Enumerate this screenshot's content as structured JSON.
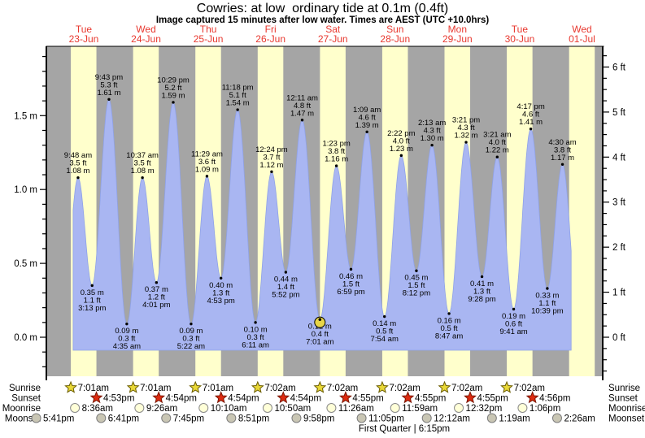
{
  "title": "Cowries: at low  ordinary tide at 0.1m (0.4ft)",
  "subtitle": "Image captured 15 minutes after low water. Times are AEST (UTC +10.0hrs)",
  "colors": {
    "background": "#ffffff",
    "night_band": "#a5a5a5",
    "day_band": "#ffffcc",
    "tide_fill": "#a9b6f2",
    "tide_stroke": "#8fa2e8",
    "axis": "#000000",
    "day_label": "#e8382f",
    "annotation_text": "#000000",
    "sunrise_star": "#e9d837",
    "sunrise_star_outline": "#6b5d00",
    "sunset_star": "#dd2b10",
    "sunset_star_outline": "#7a1500",
    "moonrise_circle": "#ffffd8",
    "moonrise_circle_outline": "#8a8a8a",
    "moonset_circle": "#c9c6b4",
    "moonset_circle_outline": "#7d7d7d",
    "capture_marker": "#e8d548"
  },
  "chart_data": {
    "type": "area",
    "title": "Cowries: at low  ordinary tide at 0.1m (0.4ft)",
    "subtitle": "Image captured 15 minutes after low water. Times are AEST (UTC +10.0hrs)",
    "days": [
      {
        "weekday": "Tue",
        "date": "23-Jun"
      },
      {
        "weekday": "Wed",
        "date": "24-Jun"
      },
      {
        "weekday": "Thu",
        "date": "25-Jun"
      },
      {
        "weekday": "Fri",
        "date": "26-Jun"
      },
      {
        "weekday": "Sat",
        "date": "27-Jun"
      },
      {
        "weekday": "Sun",
        "date": "28-Jun"
      },
      {
        "weekday": "Mon",
        "date": "29-Jun"
      },
      {
        "weekday": "Tue",
        "date": "30-Jun"
      },
      {
        "weekday": "Wed",
        "date": "01-Jul"
      }
    ],
    "y_axis_left": {
      "unit": "m",
      "ticks": [
        {
          "value": 0.0,
          "label": "0.0 m"
        },
        {
          "value": 0.5,
          "label": "0.5 m"
        },
        {
          "value": 1.0,
          "label": "1.0 m"
        },
        {
          "value": 1.5,
          "label": "1.5 m"
        }
      ]
    },
    "y_axis_right": {
      "unit": "ft",
      "ticks": [
        {
          "value": 0,
          "label": "0 ft"
        },
        {
          "value": 1,
          "label": "1 ft"
        },
        {
          "value": 2,
          "label": "2 ft"
        },
        {
          "value": 3,
          "label": "3 ft"
        },
        {
          "value": 4,
          "label": "4 ft"
        },
        {
          "value": 5,
          "label": "5 ft"
        },
        {
          "value": 6,
          "label": "6 ft"
        }
      ]
    },
    "tides": [
      {
        "day": 0,
        "time": "9:48 am",
        "type": "high",
        "ft_label": "3.5 ft",
        "m_label": "1.08 m",
        "height_m": 1.08
      },
      {
        "day": 0,
        "time": "3:13 pm",
        "type": "low",
        "ft_label": "1.1 ft",
        "m_label": "0.35 m",
        "height_m": 0.35
      },
      {
        "day": 0,
        "time": "9:43 pm",
        "type": "high",
        "ft_label": "5.3 ft",
        "m_label": "1.61 m",
        "height_m": 1.61
      },
      {
        "day": 1,
        "time": "4:35 am",
        "type": "low",
        "ft_label": "0.3 ft",
        "m_label": "0.09 m",
        "height_m": 0.09
      },
      {
        "day": 1,
        "time": "10:37 am",
        "type": "high",
        "ft_label": "3.5 ft",
        "m_label": "1.08 m",
        "height_m": 1.08
      },
      {
        "day": 1,
        "time": "4:01 pm",
        "type": "low",
        "ft_label": "1.2 ft",
        "m_label": "0.37 m",
        "height_m": 0.37
      },
      {
        "day": 1,
        "time": "10:29 pm",
        "type": "high",
        "ft_label": "5.2 ft",
        "m_label": "1.59 m",
        "height_m": 1.59
      },
      {
        "day": 2,
        "time": "5:22 am",
        "type": "low",
        "ft_label": "0.3 ft",
        "m_label": "0.09 m",
        "height_m": 0.09
      },
      {
        "day": 2,
        "time": "11:29 am",
        "type": "high",
        "ft_label": "3.6 ft",
        "m_label": "1.09 m",
        "height_m": 1.09
      },
      {
        "day": 2,
        "time": "4:53 pm",
        "type": "low",
        "ft_label": "1.3 ft",
        "m_label": "0.40 m",
        "height_m": 0.4
      },
      {
        "day": 2,
        "time": "11:18 pm",
        "type": "high",
        "ft_label": "5.1 ft",
        "m_label": "1.54 m",
        "height_m": 1.54
      },
      {
        "day": 3,
        "time": "6:11 am",
        "type": "low",
        "ft_label": "0.3 ft",
        "m_label": "0.10 m",
        "height_m": 0.1
      },
      {
        "day": 3,
        "time": "12:24 pm",
        "type": "high",
        "ft_label": "3.7 ft",
        "m_label": "1.12 m",
        "height_m": 1.12
      },
      {
        "day": 3,
        "time": "5:52 pm",
        "type": "low",
        "ft_label": "1.4 ft",
        "m_label": "0.44 m",
        "height_m": 0.44
      },
      {
        "day": 4,
        "time": "12:11 am",
        "type": "high",
        "ft_label": "4.8 ft",
        "m_label": "1.47 m",
        "height_m": 1.47
      },
      {
        "day": 4,
        "time": "7:01 am",
        "type": "low",
        "ft_label": "0.4 ft",
        "m_label": "0.12 m",
        "height_m": 0.12,
        "capture_marker": true
      },
      {
        "day": 4,
        "time": "1:23 pm",
        "type": "high",
        "ft_label": "3.8 ft",
        "m_label": "1.16 m",
        "height_m": 1.16
      },
      {
        "day": 4,
        "time": "6:59 pm",
        "type": "low",
        "ft_label": "1.5 ft",
        "m_label": "0.46 m",
        "height_m": 0.46
      },
      {
        "day": 5,
        "time": "1:09 am",
        "type": "high",
        "ft_label": "4.6 ft",
        "m_label": "1.39 m",
        "height_m": 1.39
      },
      {
        "day": 5,
        "time": "7:54 am",
        "type": "low",
        "ft_label": "0.5 ft",
        "m_label": "0.14 m",
        "height_m": 0.14
      },
      {
        "day": 5,
        "time": "2:22 pm",
        "type": "high",
        "ft_label": "4.0 ft",
        "m_label": "1.23 m",
        "height_m": 1.23
      },
      {
        "day": 5,
        "time": "8:12 pm",
        "type": "low",
        "ft_label": "1.5 ft",
        "m_label": "0.45 m",
        "height_m": 0.45
      },
      {
        "day": 6,
        "time": "2:13 am",
        "type": "high",
        "ft_label": "4.3 ft",
        "m_label": "1.30 m",
        "height_m": 1.3
      },
      {
        "day": 6,
        "time": "8:47 am",
        "type": "low",
        "ft_label": "0.5 ft",
        "m_label": "0.16 m",
        "height_m": 0.16
      },
      {
        "day": 6,
        "time": "3:21 pm",
        "type": "high",
        "ft_label": "4.3 ft",
        "m_label": "1.32 m",
        "height_m": 1.32
      },
      {
        "day": 6,
        "time": "9:28 pm",
        "type": "low",
        "ft_label": "1.3 ft",
        "m_label": "0.41 m",
        "height_m": 0.41
      },
      {
        "day": 7,
        "time": "3:21 am",
        "type": "high",
        "ft_label": "4.0 ft",
        "m_label": "1.22 m",
        "height_m": 1.22
      },
      {
        "day": 7,
        "time": "9:41 am",
        "type": "low",
        "ft_label": "0.6 ft",
        "m_label": "0.19 m",
        "height_m": 0.19
      },
      {
        "day": 7,
        "time": "4:17 pm",
        "type": "high",
        "ft_label": "4.6 ft",
        "m_label": "1.41 m",
        "height_m": 1.41
      },
      {
        "day": 7,
        "time": "10:39 pm",
        "type": "low",
        "ft_label": "1.1 ft",
        "m_label": "0.33 m",
        "height_m": 0.33
      },
      {
        "day": 8,
        "time": "4:30 am",
        "type": "high",
        "ft_label": "3.8 ft",
        "m_label": "1.17 m",
        "height_m": 1.17
      }
    ],
    "curve_boundaries": {
      "lead_in": {
        "day": 0,
        "time": "3:45 am",
        "height_m": 0.09
      },
      "lead_out": {
        "day": 8,
        "time": "10:26 am",
        "height_m": 0.19
      },
      "fill_start": {
        "day": 0,
        "time": "7:55 am"
      },
      "fill_end": {
        "day": 8,
        "time": "7:50 am"
      }
    },
    "sun_moon": {
      "rows": [
        {
          "label": "Sunrise",
          "icon": "sunrise-star",
          "events": [
            {
              "day": 0,
              "time": "7:01am"
            },
            {
              "day": 1,
              "time": "7:01am"
            },
            {
              "day": 2,
              "time": "7:01am"
            },
            {
              "day": 3,
              "time": "7:02am"
            },
            {
              "day": 4,
              "time": "7:02am"
            },
            {
              "day": 5,
              "time": "7:02am"
            },
            {
              "day": 6,
              "time": "7:02am"
            },
            {
              "day": 7,
              "time": "7:02am"
            }
          ]
        },
        {
          "label": "Sunset",
          "icon": "sunset-star",
          "events": [
            {
              "day": 0,
              "time": "4:53pm"
            },
            {
              "day": 1,
              "time": "4:54pm"
            },
            {
              "day": 2,
              "time": "4:54pm"
            },
            {
              "day": 3,
              "time": "4:54pm"
            },
            {
              "day": 4,
              "time": "4:55pm"
            },
            {
              "day": 5,
              "time": "4:55pm"
            },
            {
              "day": 6,
              "time": "4:55pm"
            },
            {
              "day": 7,
              "time": "4:56pm"
            }
          ]
        },
        {
          "label": "Moonrise",
          "icon": "moonrise-circle",
          "events": [
            {
              "day": 0,
              "time": "8:36am"
            },
            {
              "day": 1,
              "time": "9:26am"
            },
            {
              "day": 2,
              "time": "10:10am"
            },
            {
              "day": 3,
              "time": "10:50am"
            },
            {
              "day": 4,
              "time": "11:26am"
            },
            {
              "day": 5,
              "time": "11:59am"
            },
            {
              "day": 6,
              "time": "12:32pm"
            },
            {
              "day": 7,
              "time": "1:06pm"
            }
          ]
        },
        {
          "label": "Moonset",
          "icon": "moonset-circle",
          "events": [
            {
              "day": -1,
              "time": "5:41pm"
            },
            {
              "day": 0,
              "time": "6:41pm"
            },
            {
              "day": 1,
              "time": "7:45pm"
            },
            {
              "day": 2,
              "time": "8:51pm"
            },
            {
              "day": 3,
              "time": "9:58pm"
            },
            {
              "day": 4,
              "time": "11:05pm"
            },
            {
              "day": 6,
              "time": "12:12am"
            },
            {
              "day": 7,
              "time": "1:19am"
            },
            {
              "day": 8,
              "time": "2:26am"
            }
          ]
        }
      ],
      "footer": "First Quarter | 6:15pm"
    }
  }
}
